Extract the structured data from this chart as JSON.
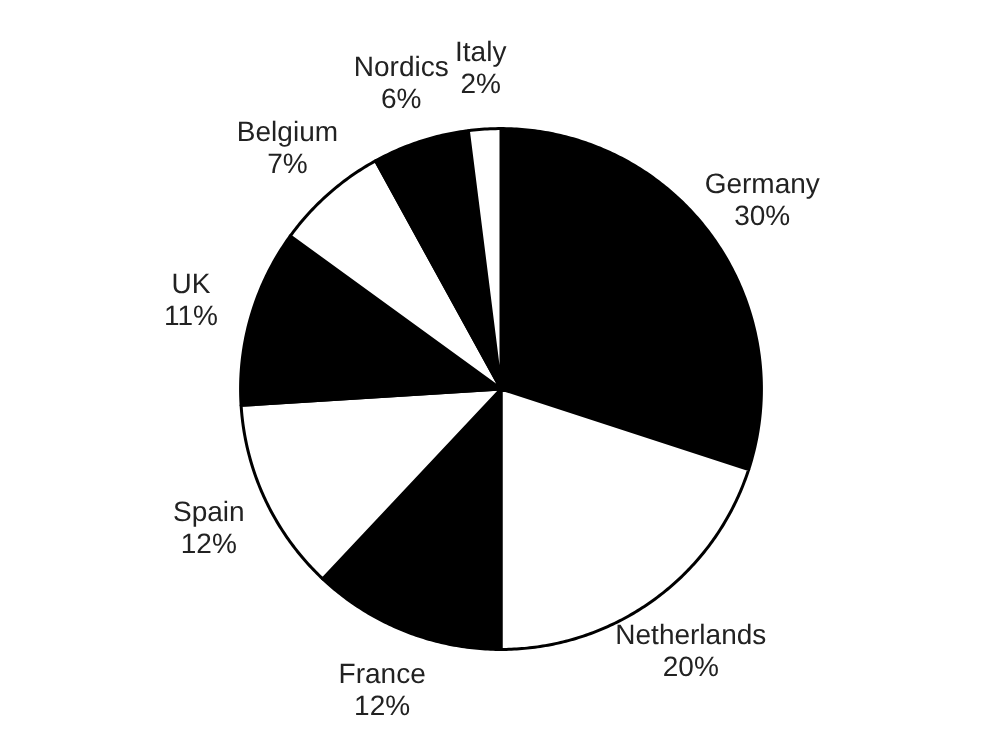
{
  "chart_data": {
    "type": "pie",
    "categories": [
      "Germany",
      "Netherlands",
      "France",
      "Spain",
      "UK",
      "Belgium",
      "Nordics",
      "Italy"
    ],
    "values": [
      30,
      20,
      12,
      12,
      11,
      7,
      6,
      2
    ],
    "colors": [
      "#000000",
      "#ffffff",
      "#000000",
      "#ffffff",
      "#000000",
      "#ffffff",
      "#000000",
      "#ffffff"
    ],
    "value_labels": [
      "30%",
      "20%",
      "12%",
      "12%",
      "11%",
      "7%",
      "6%",
      "2%"
    ]
  }
}
